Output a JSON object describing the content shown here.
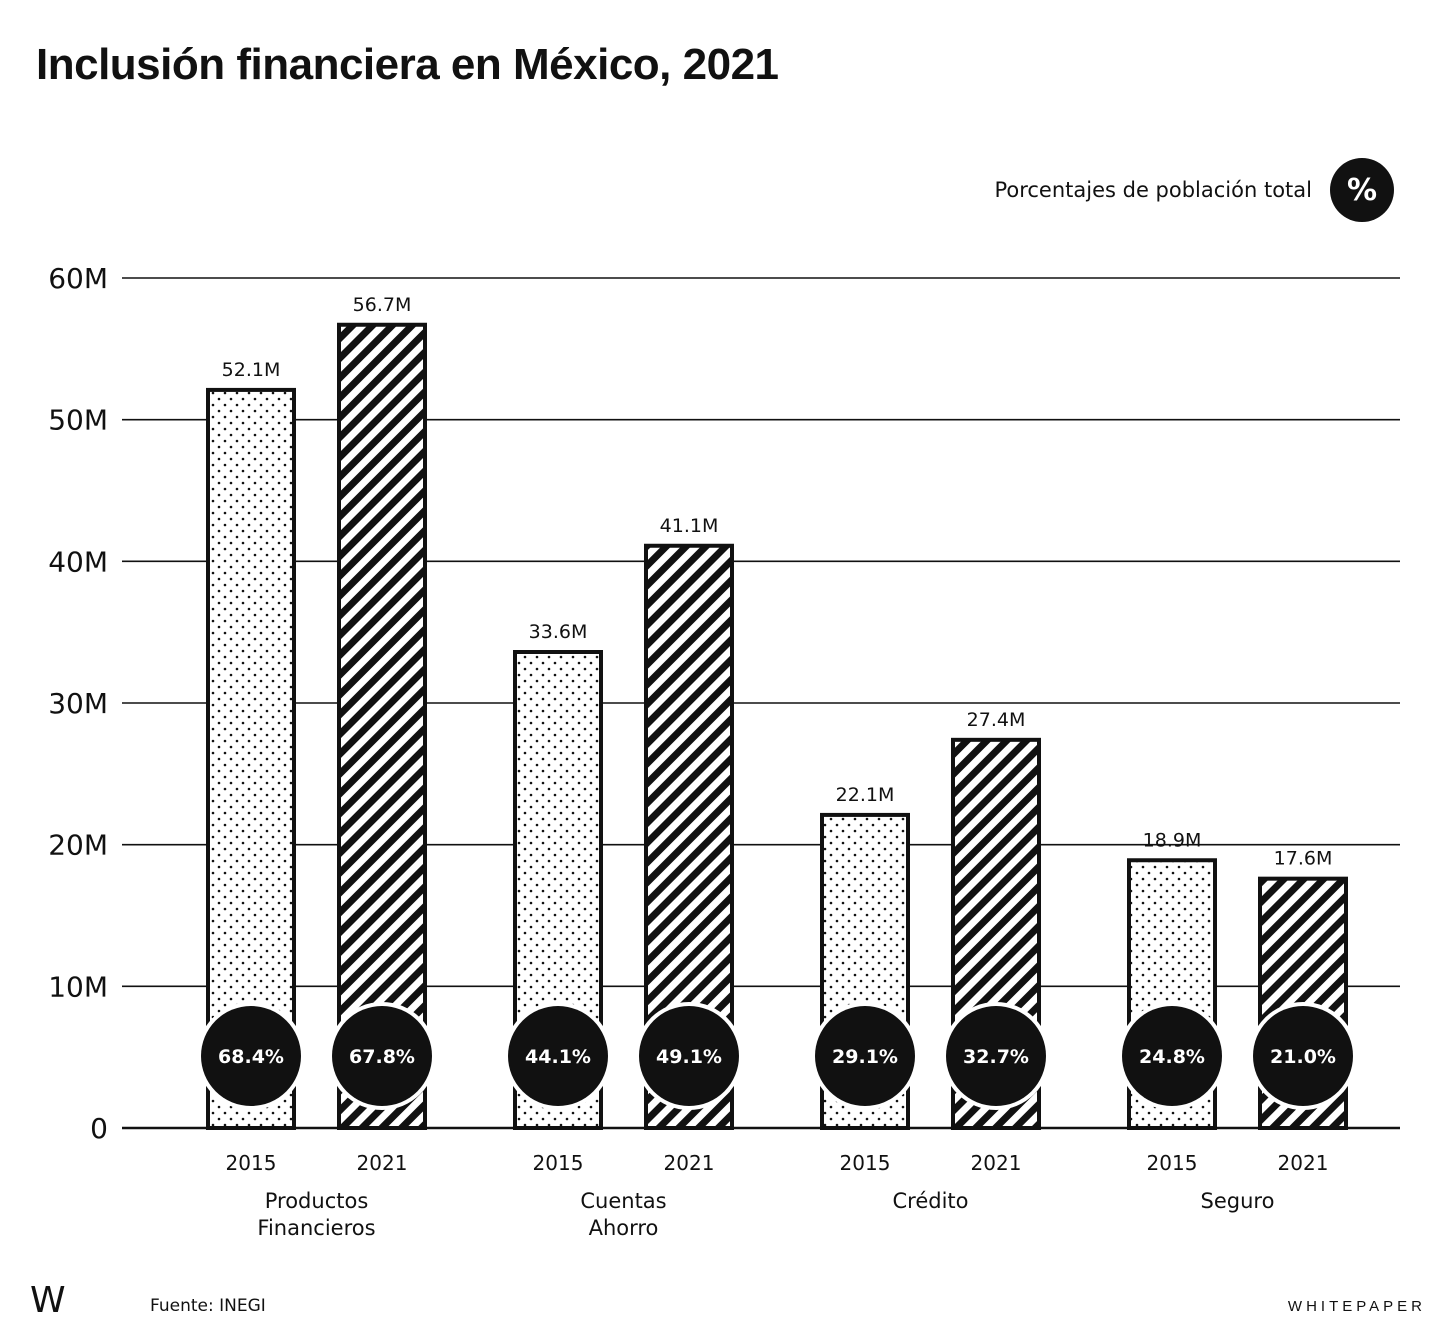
{
  "header": {
    "title": "Inclusión financiera en México, 2021"
  },
  "legend": {
    "label": "Porcentajes de población total",
    "badge": "%"
  },
  "footer": {
    "logo": "W",
    "source": "Fuente: INEGI",
    "brand": "WHITEPAPER"
  },
  "colors": {
    "ink": "#111111",
    "paper": "#ffffff"
  },
  "chart_data": {
    "type": "bar",
    "title": "Inclusión financiera en México, 2021",
    "xlabel": "",
    "ylabel": "",
    "ylim": [
      0,
      60
    ],
    "yticks": [
      {
        "value": 0,
        "label": "0"
      },
      {
        "value": 10,
        "label": "10M"
      },
      {
        "value": 20,
        "label": "20M"
      },
      {
        "value": 30,
        "label": "30M"
      },
      {
        "value": 40,
        "label": "40M"
      },
      {
        "value": 50,
        "label": "50M"
      },
      {
        "value": 60,
        "label": "60M"
      }
    ],
    "grid": true,
    "legend_placement": "top-right",
    "categories": [
      {
        "label_lines": [
          "Productos",
          "Financieros"
        ],
        "bars": [
          {
            "year": "2015",
            "value": 52.1,
            "label": "52.1M",
            "pct": "68.4%",
            "pattern": "dots"
          },
          {
            "year": "2021",
            "value": 56.7,
            "label": "56.7M",
            "pct": "67.8%",
            "pattern": "hatch"
          }
        ]
      },
      {
        "label_lines": [
          "Cuentas",
          "Ahorro"
        ],
        "bars": [
          {
            "year": "2015",
            "value": 33.6,
            "label": "33.6M",
            "pct": "44.1%",
            "pattern": "dots"
          },
          {
            "year": "2021",
            "value": 41.1,
            "label": "41.1M",
            "pct": "49.1%",
            "pattern": "hatch"
          }
        ]
      },
      {
        "label_lines": [
          "Crédito"
        ],
        "bars": [
          {
            "year": "2015",
            "value": 22.1,
            "label": "22.1M",
            "pct": "29.1%",
            "pattern": "dots"
          },
          {
            "year": "2021",
            "value": 27.4,
            "label": "27.4M",
            "pct": "32.7%",
            "pattern": "hatch"
          }
        ]
      },
      {
        "label_lines": [
          "Seguro"
        ],
        "bars": [
          {
            "year": "2015",
            "value": 18.9,
            "label": "18.9M",
            "pct": "24.8%",
            "pattern": "dots"
          },
          {
            "year": "2021",
            "value": 17.6,
            "label": "17.6M",
            "pct": "21.0%",
            "pattern": "hatch"
          }
        ]
      }
    ]
  }
}
